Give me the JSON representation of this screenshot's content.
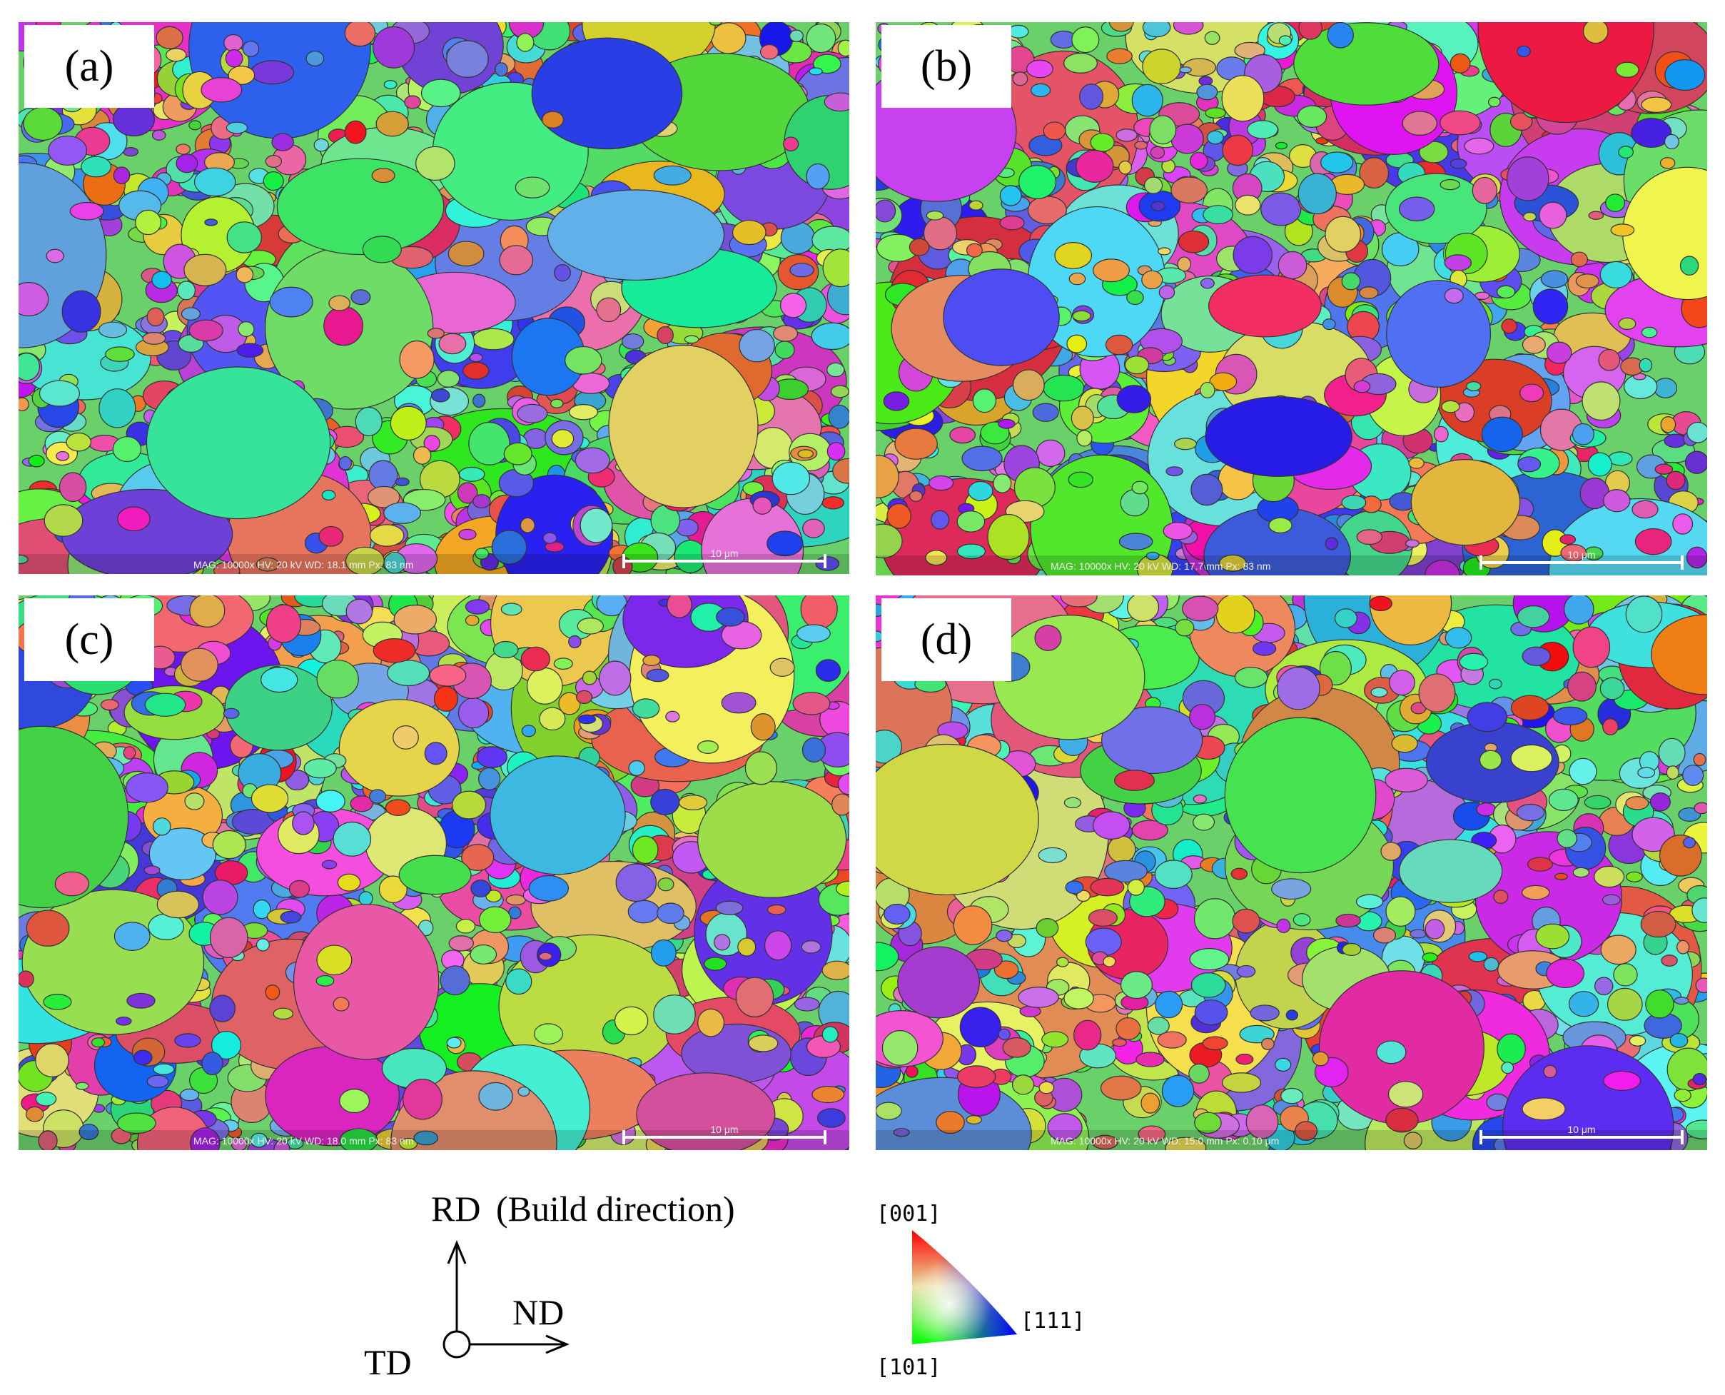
{
  "panels": [
    {
      "label": "(a)",
      "info": "MAG: 10000x   HV: 20 kV   WD: 18.1 mm   Px: 83 nm",
      "scale_bar": "10 μm"
    },
    {
      "label": "(b)",
      "info": "MAG: 10000x   HV: 20 kV   WD: 17.7 mm   Px: 83 nm",
      "scale_bar": "10 μm"
    },
    {
      "label": "(c)",
      "info": "MAG: 10000x   HV: 20 kV   WD: 18.0 mm   Px: 83 nm",
      "scale_bar": "10 μm"
    },
    {
      "label": "(d)",
      "info": "MAG: 10000x   HV: 20 kV   WD: 15.0 mm   Px: 0.10 μm",
      "scale_bar": "10 μm"
    }
  ],
  "axes": {
    "rd": "RD",
    "build": "(Build direction)",
    "nd": "ND",
    "td": "TD"
  },
  "ipf": {
    "top": "[001]",
    "right": "[111]",
    "bottom": "[101]"
  }
}
